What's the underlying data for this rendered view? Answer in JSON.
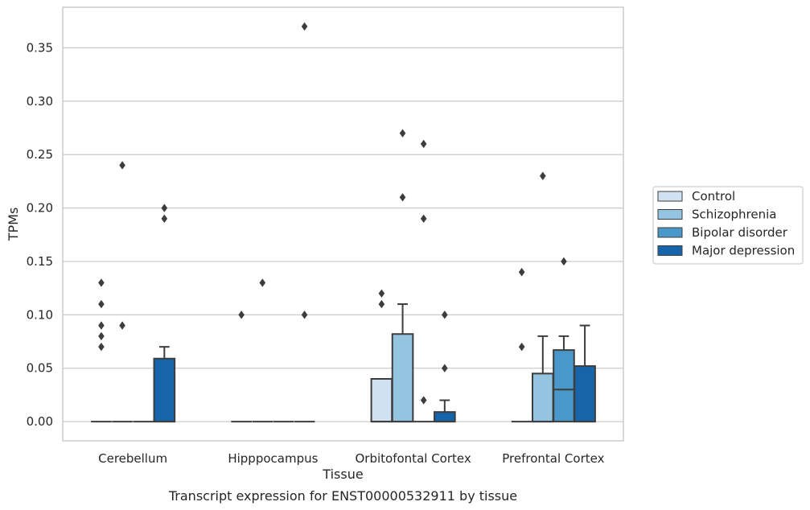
{
  "chart_data": {
    "type": "box",
    "xlabel": "Tissue",
    "ylabel": "TPMs",
    "caption": "Transcript expression for ENST00000532911 by tissue",
    "ylim": [
      -0.018,
      0.388
    ],
    "yticks": [
      "0.00",
      "0.05",
      "0.10",
      "0.15",
      "0.20",
      "0.25",
      "0.30",
      "0.35"
    ],
    "ytick_values": [
      0,
      0.05,
      0.1,
      0.15,
      0.2,
      0.25,
      0.3,
      0.35
    ],
    "grid": true,
    "legend_position": "right",
    "categories": [
      "Cerebellum",
      "Hipppocampus",
      "Orbitofontal Cortex",
      "Prefrontal Cortex"
    ],
    "series": [
      {
        "name": "Control",
        "color": "#d0e1f2",
        "boxes": [
          {
            "q1": 0,
            "median": 0,
            "q3": 0,
            "whislo": 0,
            "whishi": 0,
            "fliers": [
              0.13,
              0.11,
              0.09,
              0.08,
              0.07
            ]
          },
          {
            "q1": 0,
            "median": 0,
            "q3": 0,
            "whislo": 0,
            "whishi": 0,
            "fliers": [
              0.1
            ]
          },
          {
            "q1": 0,
            "median": 0,
            "q3": 0.04,
            "whislo": 0,
            "whishi": 0.04,
            "fliers": [
              0.12,
              0.11
            ]
          },
          {
            "q1": 0,
            "median": 0,
            "q3": 0,
            "whislo": 0,
            "whishi": 0,
            "fliers": [
              0.14,
              0.07
            ]
          }
        ]
      },
      {
        "name": "Schizophrenia",
        "color": "#94c4df",
        "boxes": [
          {
            "q1": 0,
            "median": 0,
            "q3": 0,
            "whislo": 0,
            "whishi": 0,
            "fliers": [
              0.24,
              0.09
            ]
          },
          {
            "q1": 0,
            "median": 0,
            "q3": 0,
            "whislo": 0,
            "whishi": 0,
            "fliers": [
              0.13
            ]
          },
          {
            "q1": 0,
            "median": 0,
            "q3": 0.082,
            "whislo": 0,
            "whishi": 0.11,
            "fliers": [
              0.27,
              0.21
            ]
          },
          {
            "q1": 0,
            "median": 0,
            "q3": 0.045,
            "whislo": 0,
            "whishi": 0.08,
            "fliers": [
              0.23
            ]
          }
        ]
      },
      {
        "name": "Bipolar disorder",
        "color": "#4a98c9",
        "boxes": [
          {
            "q1": 0,
            "median": 0,
            "q3": 0,
            "whislo": 0,
            "whishi": 0,
            "fliers": []
          },
          {
            "q1": 0,
            "median": 0,
            "q3": 0,
            "whislo": 0,
            "whishi": 0,
            "fliers": []
          },
          {
            "q1": 0,
            "median": 0,
            "q3": 0,
            "whislo": 0,
            "whishi": 0,
            "fliers": [
              0.26,
              0.19,
              0.02
            ]
          },
          {
            "q1": 0,
            "median": 0.03,
            "q3": 0.067,
            "whislo": 0,
            "whishi": 0.08,
            "fliers": [
              0.15
            ]
          }
        ]
      },
      {
        "name": "Major depression",
        "color": "#1764ab",
        "boxes": [
          {
            "q1": 0,
            "median": 0,
            "q3": 0.059,
            "whislo": 0,
            "whishi": 0.07,
            "fliers": [
              0.2,
              0.19
            ]
          },
          {
            "q1": 0,
            "median": 0,
            "q3": 0,
            "whislo": 0,
            "whishi": 0,
            "fliers": [
              0.37,
              0.1
            ]
          },
          {
            "q1": 0,
            "median": 0,
            "q3": 0.009,
            "whislo": 0,
            "whishi": 0.02,
            "fliers": [
              0.1,
              0.05
            ]
          },
          {
            "q1": 0,
            "median": 0,
            "q3": 0.052,
            "whislo": 0,
            "whishi": 0.09,
            "fliers": []
          }
        ]
      }
    ]
  }
}
